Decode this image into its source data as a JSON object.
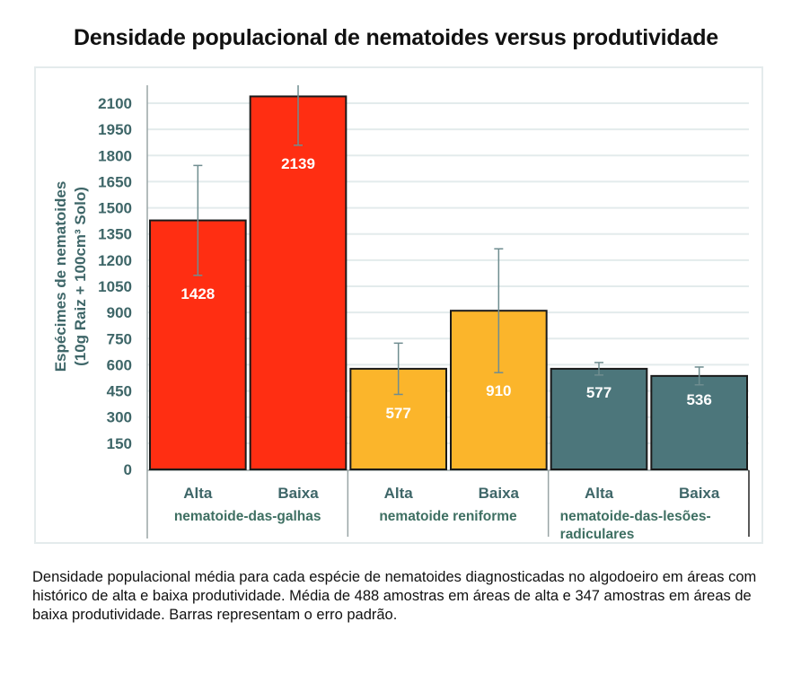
{
  "title": "Densidade populacional de nematoides versus produtividade",
  "caption": "Densidade populacional média para cada espécie de nematoides diagnosticadas no algodoeiro em áreas com histórico de alta e baixa produtividade. Média de 488 amostras em áreas de alta e 347 amostras em áreas de baixa produtividade. Barras representam o erro padrão.",
  "chart_data": {
    "type": "bar",
    "title": "Densidade populacional de nematoides versus produtividade",
    "xlabel": "",
    "ylabel": [
      "Espécimes de nematoides",
      "(10g Raiz + 100cm³ Solo)"
    ],
    "ylim": [
      0,
      2100
    ],
    "yticks": [
      0,
      150,
      300,
      450,
      600,
      750,
      900,
      1050,
      1200,
      1350,
      1500,
      1650,
      1800,
      1950,
      2100
    ],
    "grid": true,
    "legend": "none",
    "groups": [
      {
        "name": "nematoide-das-galhas",
        "name_lines": [
          "nematoide-das-galhas"
        ],
        "color": "#ff2e12"
      },
      {
        "name": "nematoide reniforme",
        "name_lines": [
          "nematoide reniforme"
        ],
        "color": "#fbb52b"
      },
      {
        "name": "nematoide-das-lesões-radiculares",
        "name_lines": [
          "nematoide-das-lesões-",
          "radiculares"
        ],
        "color": "#4c767b"
      }
    ],
    "categories": [
      "Alta",
      "Baixa",
      "Alta",
      "Baixa",
      "Alta",
      "Baixa"
    ],
    "bars": [
      {
        "group": 0,
        "category": "Alta",
        "value": 1428,
        "error": 315,
        "label": "1428"
      },
      {
        "group": 0,
        "category": "Baixa",
        "value": 2139,
        "error": 280,
        "label": "2139"
      },
      {
        "group": 1,
        "category": "Alta",
        "value": 577,
        "error": 147,
        "label": "577"
      },
      {
        "group": 1,
        "category": "Baixa",
        "value": 910,
        "error": 355,
        "label": "910"
      },
      {
        "group": 2,
        "category": "Alta",
        "value": 577,
        "error": 36,
        "label": "577"
      },
      {
        "group": 2,
        "category": "Baixa",
        "value": 536,
        "error": 51,
        "label": "536"
      }
    ],
    "colors": {
      "grid": "#e3ebec",
      "axis": "#9aa5a6",
      "bar_border": "#1a1a1a",
      "error_bar": "#6f8d90",
      "tick_text": "#3e6668",
      "group_text": "#3e6f62",
      "value_text": "#ffffff"
    }
  }
}
